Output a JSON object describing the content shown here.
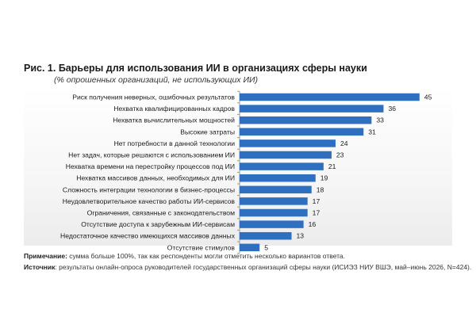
{
  "figure": {
    "title": "Рис. 1. Барьеры для использования ИИ в организациях сферы науки",
    "subtitle": "(% опрошенных организаций, не использующих ИИ)",
    "note_label": "Примечание:",
    "note_text": " сумма больше 100%, так как респонденты могли отметить несколько вариантов ответа.",
    "source_label": "Источник",
    "source_text": ": результаты онлайн-опроса руководителей государственных организаций сферы науки (ИСИЭЗ НИУ ВШЭ, май–июнь 2026, N=424)."
  },
  "colors": {
    "bar": "#2f6fbf",
    "axis": "#9a9a9a",
    "label": "#1a1a1a"
  },
  "chart_data": {
    "type": "bar",
    "orientation": "horizontal",
    "title": "Рис. 1. Барьеры для использования ИИ в организациях сферы науки",
    "subtitle": "(% опрошенных организаций, не использующих ИИ)",
    "xlabel": "",
    "ylabel": "",
    "xlim": [
      0,
      45
    ],
    "grid": false,
    "legend": "none",
    "categories": [
      "Риск получения неверных, ошибочных результатов",
      "Нехватка квалифицированных кадров",
      "Нехватка вычислительных мощностей",
      "Высокие затраты",
      "Нет потребности в данной технологии",
      "Нет задач, которые решаются с использованием ИИ",
      "Нехватка времени на перестройку процессов под ИИ",
      "Нехватка массивов данных, необходимых для ИИ",
      "Сложность интеграции технологии в бизнес-процессы",
      "Неудовлетворительное качество работы ИИ-сервисов",
      "Ограничения, связанные с законодательством",
      "Отсутствие доступа к зарубежным ИИ-сервисам",
      "Недостаточное качество имеющихся массивов данных",
      "Отсутствие стимулов"
    ],
    "values": [
      45,
      36,
      33,
      31,
      24,
      23,
      21,
      19,
      18,
      17,
      17,
      16,
      13,
      5
    ],
    "value_labels": [
      "45",
      "36",
      "33",
      "31",
      "24",
      "23",
      "21",
      "19",
      "18",
      "17",
      "17",
      "16",
      "13",
      "5"
    ]
  }
}
